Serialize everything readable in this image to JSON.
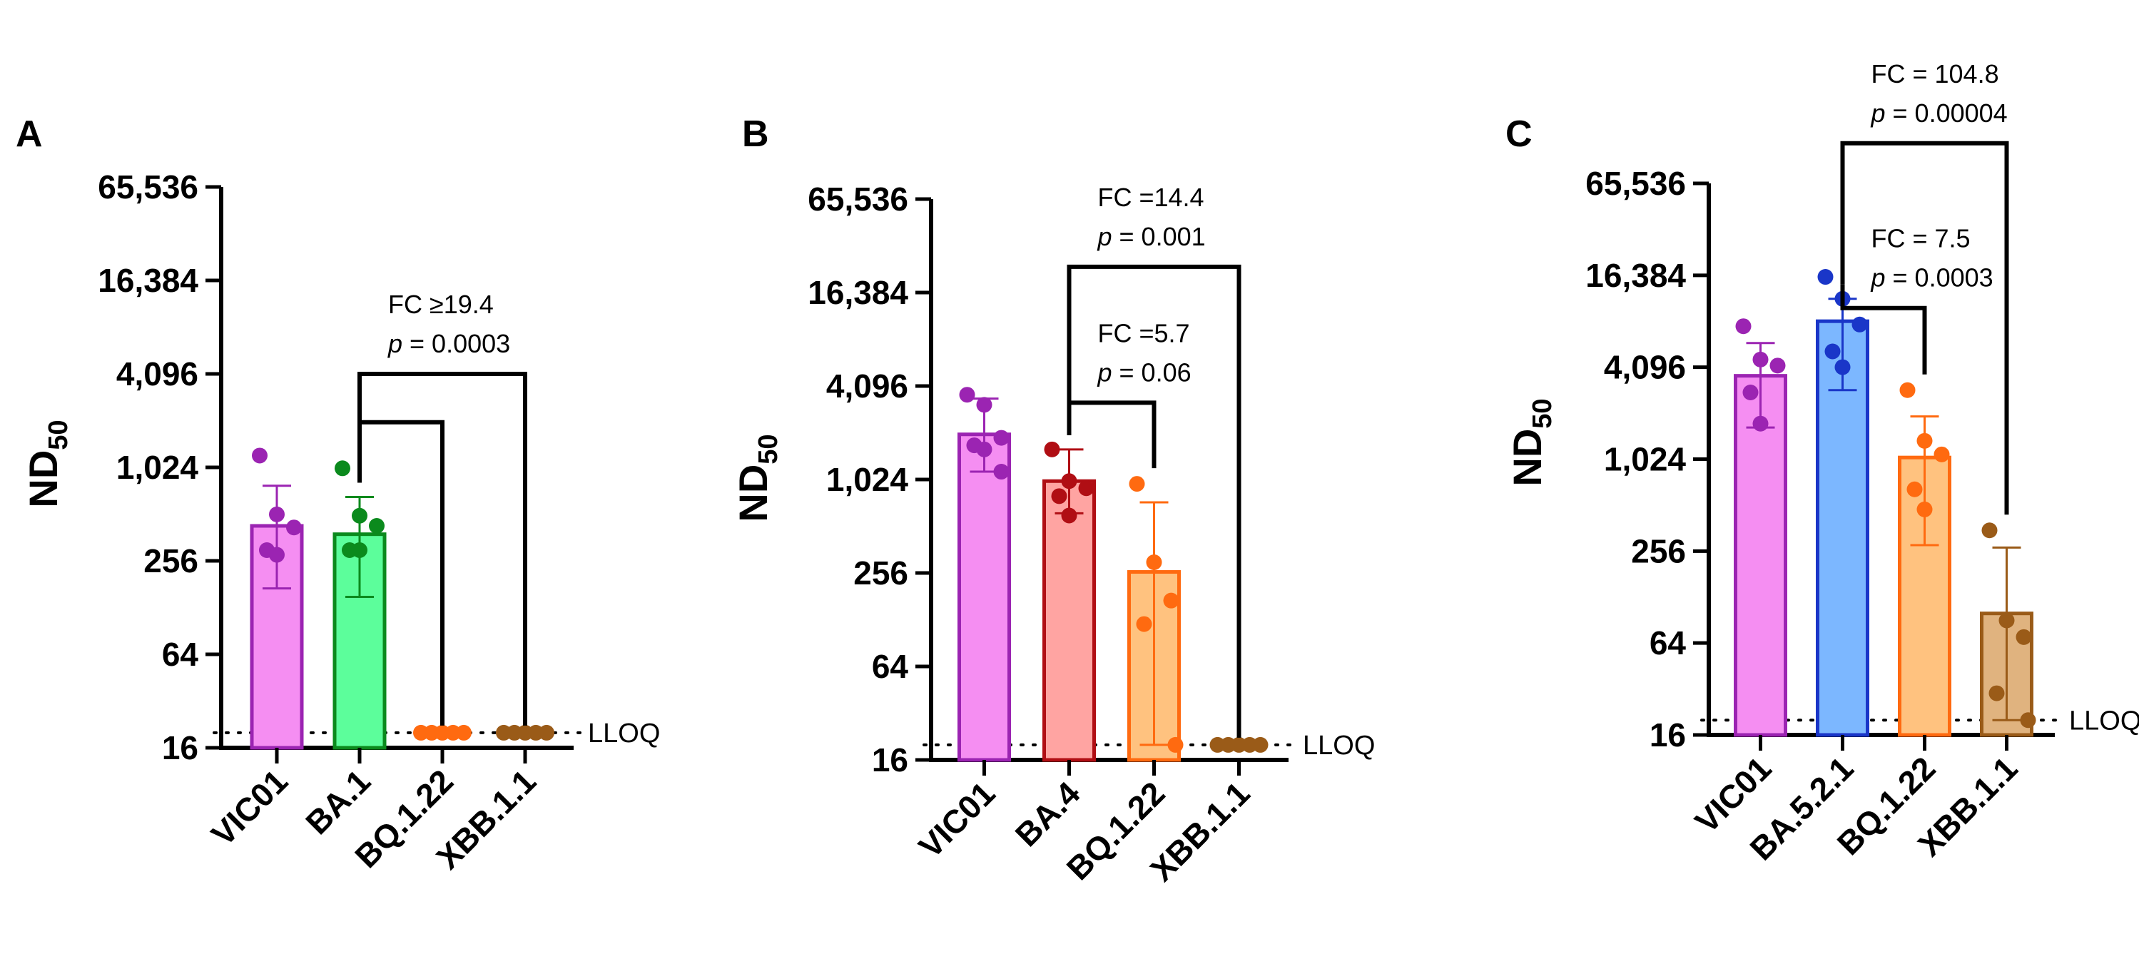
{
  "figure": {
    "description_free": true
  },
  "chart_data": [
    {
      "type": "bar",
      "panel": "A",
      "ylabel": "ND",
      "ylabel_sub": "50",
      "yscale": "log2",
      "ylim": [
        16,
        65536
      ],
      "yticks": [
        16,
        64,
        256,
        1024,
        4096,
        16384,
        65536
      ],
      "ytick_labels": [
        "16",
        "64",
        "256",
        "1,024",
        "4,096",
        "16,384",
        "65,536"
      ],
      "lloq": 20,
      "lloq_label": "LLOQ",
      "categories": [
        "VIC01",
        "BA.1",
        "BQ.1.22",
        "XBB.1.1"
      ],
      "values": [
        430,
        380,
        20,
        20
      ],
      "errors": [
        [
          170,
          780
        ],
        [
          150,
          660
        ],
        [
          20,
          20
        ],
        [
          20,
          20
        ]
      ],
      "points": [
        [
          1220,
          510,
          420,
          300,
          280
        ],
        [
          1010,
          500,
          430,
          300,
          300
        ],
        [
          20,
          20,
          20,
          20,
          20
        ],
        [
          20,
          20,
          20,
          20,
          20
        ]
      ],
      "colors": {
        "fills": [
          "#f58ef2",
          "#5cfe9b",
          "#ffb36a",
          "#e0b37f"
        ],
        "strokes": [
          "#9b24b2",
          "#0b8a1d",
          "#ff6a10",
          "#9a5b18"
        ]
      },
      "comparisons": [
        {
          "from": 1,
          "to": 2,
          "level": 2000,
          "fc": "",
          "p": ""
        },
        {
          "from": 1,
          "to": 3,
          "level": 4096,
          "fc": "FC ≥19.4",
          "p_prefix": "p",
          "p": " = 0.0003"
        }
      ]
    },
    {
      "type": "bar",
      "panel": "B",
      "ylabel": "ND",
      "ylabel_sub": "50",
      "yscale": "log2",
      "ylim": [
        16,
        65536
      ],
      "yticks": [
        16,
        64,
        256,
        1024,
        4096,
        16384,
        65536
      ],
      "ytick_labels": [
        "16",
        "64",
        "256",
        "1,024",
        "4,096",
        "16,384",
        "65,536"
      ],
      "lloq": 20,
      "lloq_label": "LLOQ",
      "categories": [
        "VIC01",
        "BA.4",
        "BQ.1.22",
        "XBB.1.1"
      ],
      "values": [
        2000,
        1000,
        260,
        20
      ],
      "errors": [
        [
          1150,
          3400
        ],
        [
          620,
          1600
        ],
        [
          20,
          730
        ],
        [
          20,
          20
        ]
      ],
      "points": [
        [
          3600,
          3100,
          1900,
          1700,
          1600,
          1150
        ],
        [
          1600,
          1000,
          900,
          800,
          600
        ],
        [
          960,
          300,
          170,
          120,
          20
        ],
        [
          20,
          20,
          20,
          20,
          20
        ]
      ],
      "colors": {
        "fills": [
          "#f58ef2",
          "#ffa4a2",
          "#ffc27f",
          "#e0b37f"
        ],
        "strokes": [
          "#9b24b2",
          "#b00e14",
          "#ff6a10",
          "#9a5b18"
        ]
      },
      "comparisons": [
        {
          "from": 1,
          "to": 2,
          "level": 3200,
          "fc": "FC =5.7",
          "p_prefix": "p",
          "p": " = 0.06"
        },
        {
          "from": 1,
          "to": 3,
          "level": 24000,
          "fc": "FC =14.4",
          "p_prefix": "p",
          "p": " = 0.001"
        }
      ]
    },
    {
      "type": "bar",
      "panel": "C",
      "ylabel": "ND",
      "ylabel_sub": "50",
      "yscale": "log2",
      "ylim": [
        16,
        65536
      ],
      "yticks": [
        16,
        64,
        256,
        1024,
        4096,
        16384,
        65536
      ],
      "ytick_labels": [
        "16",
        "64",
        "256",
        "1,024",
        "4,096",
        "16,384",
        "65,536"
      ],
      "lloq": 20,
      "lloq_label": "LLOQ",
      "categories": [
        "VIC01",
        "BA.5.2.1",
        "BQ.1.22",
        "XBB.1.1"
      ],
      "values": [
        3600,
        8200,
        1050,
        100
      ],
      "errors": [
        [
          1650,
          5900
        ],
        [
          2900,
          11500
        ],
        [
          280,
          1950
        ],
        [
          20,
          270
        ]
      ],
      "points": [
        [
          7600,
          4600,
          4200,
          2800,
          1750
        ],
        [
          16000,
          11500,
          7800,
          5200,
          4100
        ],
        [
          2900,
          1350,
          1100,
          650,
          480
        ],
        [
          350,
          90,
          70,
          30,
          20
        ]
      ],
      "colors": {
        "fills": [
          "#f58ef2",
          "#7cb7ff",
          "#ffc27f",
          "#e0b37f"
        ],
        "strokes": [
          "#9b24b2",
          "#1a36c8",
          "#ff6a10",
          "#9a5b18"
        ]
      },
      "comparisons": [
        {
          "from": 1,
          "to": 2,
          "level": 10000,
          "fc": "FC = 7.5",
          "p_prefix": "p",
          "p": " = 0.0003"
        },
        {
          "from": 1,
          "to": 3,
          "level": 120000,
          "fc": "FC = 104.8",
          "p_prefix": "p",
          "p": " = 0.00004"
        }
      ]
    }
  ]
}
